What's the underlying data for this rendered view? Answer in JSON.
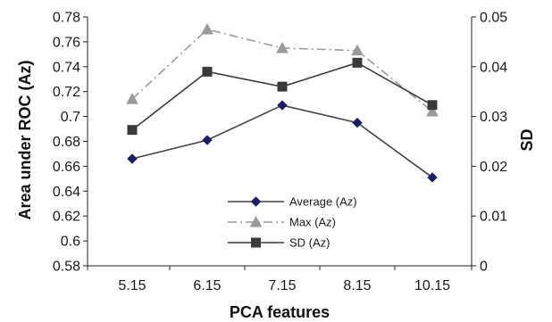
{
  "chart_data": {
    "type": "line",
    "categories": [
      "5.15",
      "6.15",
      "7.15",
      "8.15",
      "10.15"
    ],
    "xlabel": "PCA features",
    "ylabel": "Area under ROC (Az)",
    "ylabel_right": "SD",
    "ylim": [
      0.58,
      0.78
    ],
    "yticks": [
      "0.58",
      "0.6",
      "0.62",
      "0.64",
      "0.66",
      "0.68",
      "0.7",
      "0.72",
      "0.74",
      "0.76",
      "0.78"
    ],
    "ylim_right": [
      0,
      0.05
    ],
    "yticks_right": [
      "0",
      "0.01",
      "0.02",
      "0.03",
      "0.04",
      "0.05"
    ],
    "grid": false,
    "legend_position": "bottom-center",
    "series": [
      {
        "name": "Average (Az)",
        "axis": "left",
        "values": [
          0.666,
          0.681,
          0.709,
          0.695,
          0.651
        ],
        "color": "#1c1c6e",
        "line_color": "#444444",
        "marker": "diamond",
        "dash": "solid"
      },
      {
        "name": "Max (Az)",
        "axis": "left",
        "values": [
          0.714,
          0.77,
          0.755,
          0.753,
          0.704
        ],
        "color": "#9a9a9a",
        "line_color": "#9a9a9a",
        "marker": "triangle",
        "dash": "dashdot"
      },
      {
        "name": "SD (Az)",
        "axis": "right",
        "values": [
          0.0273,
          0.039,
          0.036,
          0.0408,
          0.0323
        ],
        "color": "#3a3a3a",
        "line_color": "#3a3a3a",
        "marker": "square",
        "dash": "solid"
      }
    ]
  }
}
